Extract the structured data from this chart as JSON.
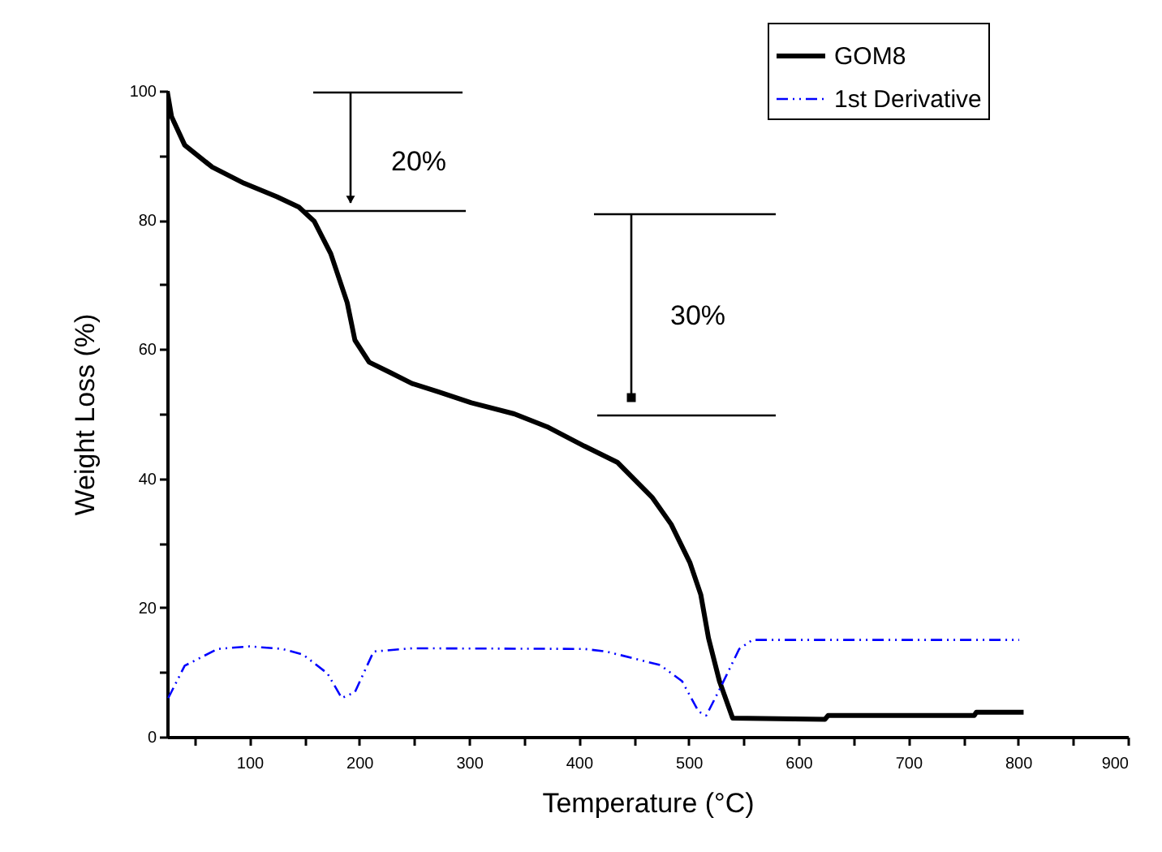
{
  "chart_data": {
    "type": "line",
    "xlabel": "Temperature (°C)",
    "ylabel": "Weight Loss (%)",
    "xlim": [
      25,
      900
    ],
    "ylim": [
      0,
      100
    ],
    "xticks": [
      {
        "value": 50,
        "label": null
      },
      100,
      {
        "value": 150,
        "label": null
      },
      200,
      {
        "value": 250,
        "label": null
      },
      300,
      {
        "value": 350,
        "label": null
      },
      400,
      {
        "value": 450,
        "label": null
      },
      500,
      {
        "value": 550,
        "label": null
      },
      600,
      {
        "value": 650,
        "label": null
      },
      700,
      {
        "value": 750,
        "label": null
      },
      800,
      {
        "value": 850,
        "label": null
      },
      900
    ],
    "yticks": [
      0,
      {
        "value": 10,
        "label": null
      },
      20,
      {
        "value": 30,
        "label": null
      },
      40,
      {
        "value": 50,
        "label": null
      },
      60,
      {
        "value": 70,
        "label": null
      },
      80,
      {
        "value": 90,
        "label": null
      },
      100
    ],
    "legend": "top right",
    "annotations": [
      "20%",
      "30%"
    ],
    "series": [
      {
        "name": "GOM8",
        "color": "#000000",
        "line_style": "solid",
        "x": [
          25,
          29,
          41,
          66,
          95,
          125,
          145,
          159,
          174,
          189,
          196,
          209,
          228,
          248,
          272,
          302,
          341,
          371,
          405,
          435,
          467,
          484,
          501,
          511,
          518,
          528,
          540,
          624,
          627,
          760,
          762,
          805
        ],
        "values": [
          100,
          96,
          91.6,
          88.2,
          85.7,
          83.6,
          82,
          79.8,
          74.8,
          67.2,
          61.4,
          58,
          56.4,
          54.7,
          53.4,
          51.7,
          50,
          48,
          45,
          42.5,
          37,
          32.9,
          27,
          22,
          15.3,
          8.6,
          2.9,
          2.7,
          3.3,
          3.3,
          3.8,
          3.8
        ]
      },
      {
        "name": "1st Derivative",
        "color": "#0000ff",
        "line_style": "dashed",
        "x": [
          26,
          41,
          71,
          100,
          130,
          149,
          171,
          184,
          196,
          213,
          248,
          405,
          425,
          474,
          494,
          509,
          516,
          528,
          546,
          558,
          801
        ],
        "values": [
          6,
          11,
          13.6,
          14,
          13.6,
          12.7,
          9.8,
          6,
          6.9,
          13.2,
          13.7,
          13.6,
          13.2,
          11.1,
          8.6,
          3.9,
          3.3,
          7.3,
          13.6,
          15,
          15
        ]
      }
    ]
  }
}
